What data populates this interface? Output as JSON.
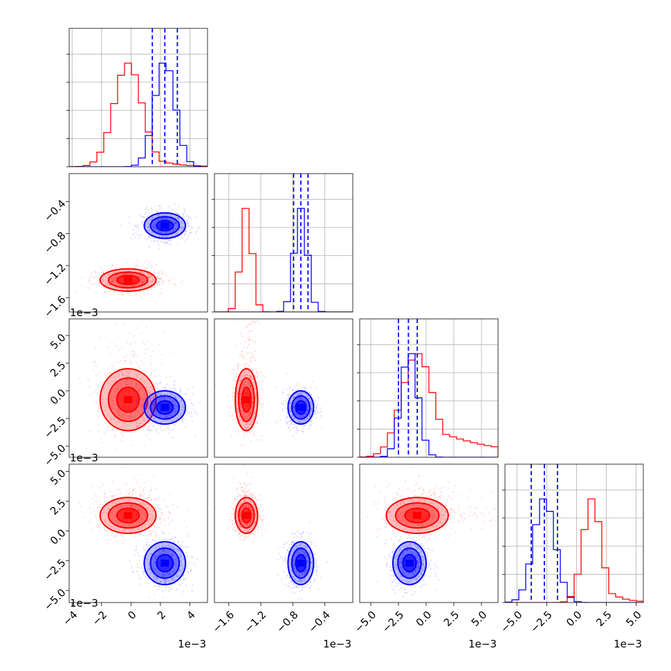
{
  "chart_data": {
    "type": "corner",
    "parameters": [
      {
        "id": "p0",
        "range": [
          -4.2,
          5.2
        ],
        "ticks": [
          -4,
          -2,
          0,
          2,
          4
        ],
        "tick_labels": [
          "−4",
          "−2",
          "0",
          "2",
          "4"
        ],
        "offset_label": "1e−3"
      },
      {
        "id": "p1",
        "range": [
          -1.78,
          -0.05
        ],
        "ticks": [
          -1.6,
          -1.2,
          -0.8,
          -0.4
        ],
        "tick_labels": [
          "−1.6",
          "−1.2",
          "−0.8",
          "−0.4"
        ],
        "offset_label": "1e−3"
      },
      {
        "id": "p2",
        "range": [
          -6.0,
          6.5
        ],
        "ticks": [
          -5.0,
          -2.5,
          0.0,
          2.5,
          5.0
        ],
        "tick_labels": [
          "−5.0",
          "−2.5",
          "0.0",
          "2.5",
          "5.0"
        ],
        "offset_label": "1e−3"
      },
      {
        "id": "p3",
        "range": [
          -6.0,
          5.6
        ],
        "ticks": [
          -5.0,
          -2.5,
          0.0,
          2.5,
          5.0
        ],
        "tick_labels": [
          "−5.0",
          "−2.5",
          "0.0",
          "2.5",
          "5.0"
        ],
        "offset_label": "1e−3"
      }
    ],
    "series": [
      {
        "color": "#ff0000",
        "means": [
          -0.2,
          -1.38,
          -0.8,
          1.3
        ],
        "sds": [
          0.95,
          0.07,
          1.4,
          0.75
        ],
        "tail": [
          2.6,
          -0.3,
          8.0,
          3.2
        ],
        "quantile_lines": false
      },
      {
        "color": "#0000ff",
        "means": [
          2.3,
          -0.7,
          -1.5,
          -2.7
        ],
        "sds": [
          0.7,
          0.08,
          0.75,
          0.9
        ],
        "tail": [
          0,
          0,
          0,
          0
        ],
        "quantile_lines": true,
        "quantiles": [
          [
            1.45,
            2.3,
            3.15
          ],
          [
            -0.79,
            -0.7,
            -0.61
          ],
          [
            -2.5,
            -1.6,
            -0.8
          ],
          [
            -3.8,
            -2.7,
            -1.6
          ]
        ]
      }
    ],
    "grid": true
  }
}
